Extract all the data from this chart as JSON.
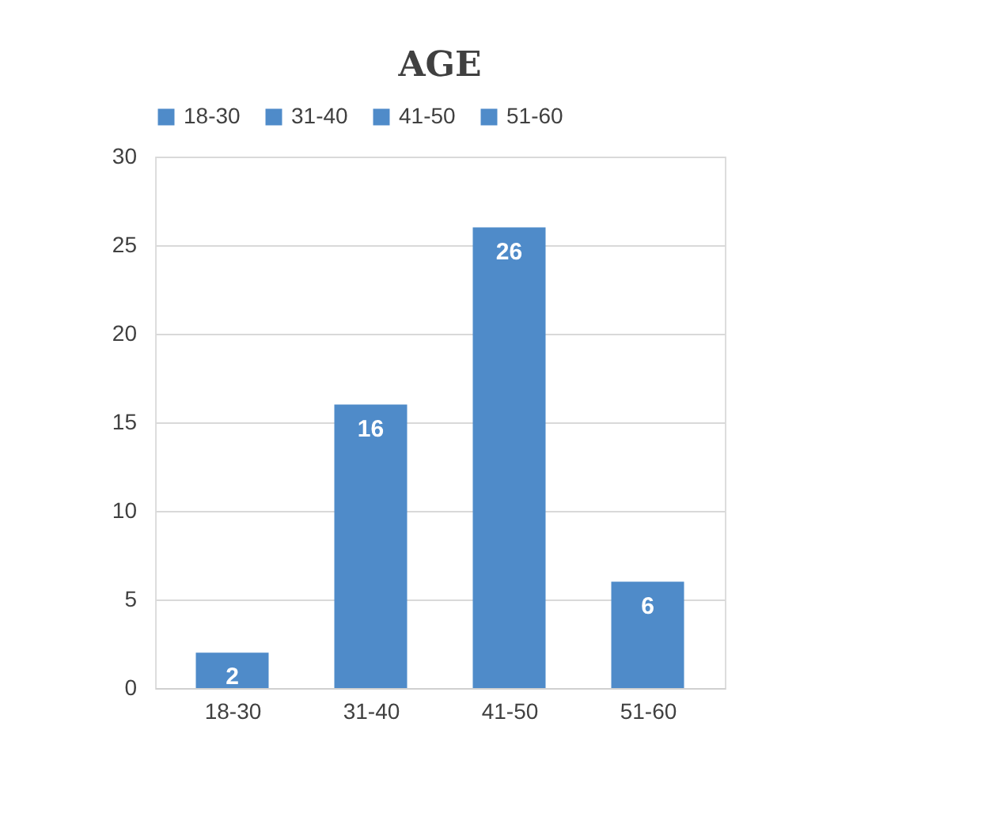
{
  "chart_data": {
    "type": "bar",
    "title": "AGE",
    "categories": [
      "18-30",
      "31-40",
      "41-50",
      "51-60"
    ],
    "series": [
      {
        "name": "18-30",
        "color": "#4f8bc9",
        "values": [
          2,
          null,
          null,
          null
        ]
      },
      {
        "name": "31-40",
        "color": "#4f8bc9",
        "values": [
          null,
          16,
          null,
          null
        ]
      },
      {
        "name": "41-50",
        "color": "#4f8bc9",
        "values": [
          null,
          null,
          26,
          null
        ]
      },
      {
        "name": "51-60",
        "color": "#4f8bc9",
        "values": [
          null,
          null,
          null,
          6
        ]
      }
    ],
    "ylim": [
      0,
      30
    ],
    "yticks": [
      0,
      5,
      10,
      15,
      20,
      25,
      30
    ],
    "grid": "y",
    "legend": "top",
    "data_labels": true
  }
}
